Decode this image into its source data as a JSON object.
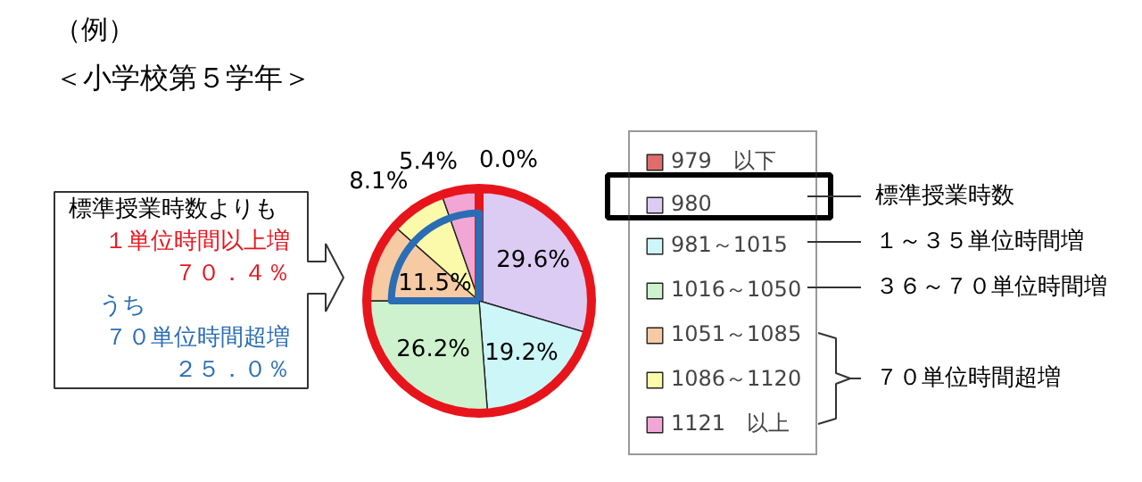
{
  "chart_data": {
    "type": "pie",
    "title": "（例）",
    "subtitle": "＜小学校第５学年＞",
    "categories": [
      "979　以下",
      "980",
      "981～1015",
      "1016～1050",
      "1051～1085",
      "1086～1120",
      "1121　以上"
    ],
    "values": [
      0.0,
      29.6,
      19.2,
      26.2,
      11.5,
      8.1,
      5.4
    ],
    "value_labels": [
      "0.0%",
      "29.6%",
      "19.2%",
      "26.2%",
      "11.5%",
      "8.1%",
      "5.4%"
    ],
    "colors": [
      "#e06c6c",
      "#dccbf2",
      "#cdf6f8",
      "#cdf2cd",
      "#f6cba3",
      "#fafaaa",
      "#f2a6d6"
    ],
    "legend": "right",
    "annotations": [
      "標準授業時数",
      "１～３５単位時間増",
      "３６～７０単位時間増",
      "７０単位時間超増",
      "標準授業時数よりも",
      "１単位時間以上増",
      "７０．４％",
      "うち",
      "７０単位時間超増",
      "２５．０％"
    ]
  }
}
